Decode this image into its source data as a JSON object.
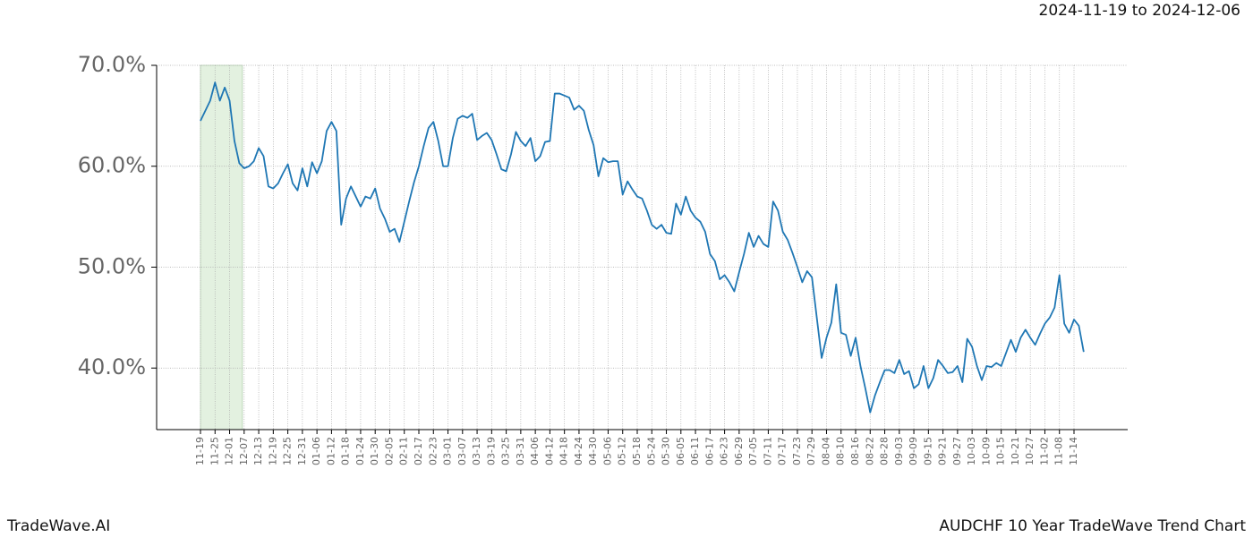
{
  "chart_data": {
    "type": "line",
    "title": "AUDCHF 10 Year TradeWave Trend Chart",
    "subtitle": "2024-11-19 to 2024-12-06",
    "brand": "TradeWave.AI",
    "color": "#1f77b4",
    "highlight": {
      "from": "11-19",
      "to": "12-07",
      "color": "#e3f1e0"
    },
    "grid": true,
    "ylim": [
      33.9,
      70
    ],
    "yticks": [
      {
        "value": 40,
        "label": "40.0%"
      },
      {
        "value": 50,
        "label": "50.0%"
      },
      {
        "value": 60,
        "label": "60.0%"
      },
      {
        "value": 70,
        "label": "70.0%"
      }
    ],
    "categories": [
      "11-19",
      null,
      null,
      "11-25",
      null,
      null,
      "12-01",
      null,
      null,
      "12-07",
      null,
      null,
      "12-13",
      null,
      null,
      "12-19",
      null,
      null,
      "12-25",
      null,
      null,
      "12-31",
      null,
      null,
      "01-06",
      null,
      null,
      "01-12",
      null,
      null,
      "01-18",
      null,
      null,
      "01-24",
      null,
      null,
      "01-30",
      null,
      null,
      "02-05",
      null,
      null,
      "02-11",
      null,
      null,
      "02-17",
      null,
      null,
      "02-23",
      null,
      null,
      "03-01",
      null,
      null,
      "03-07",
      null,
      null,
      "03-13",
      null,
      null,
      "03-19",
      null,
      null,
      "03-25",
      null,
      null,
      "03-31",
      null,
      null,
      "04-06",
      null,
      null,
      "04-12",
      null,
      null,
      "04-18",
      null,
      null,
      "04-24",
      null,
      null,
      "04-30",
      null,
      null,
      "05-06",
      null,
      null,
      "05-12",
      null,
      null,
      "05-18",
      null,
      null,
      "05-24",
      null,
      null,
      "05-30",
      null,
      null,
      "06-05",
      null,
      null,
      "06-11",
      null,
      null,
      "06-17",
      null,
      null,
      "06-23",
      null,
      null,
      "06-29",
      null,
      null,
      "07-05",
      null,
      null,
      "07-11",
      null,
      null,
      "07-17",
      null,
      null,
      "07-23",
      null,
      null,
      "07-29",
      null,
      null,
      "08-04",
      null,
      null,
      "08-10",
      null,
      null,
      "08-16",
      null,
      null,
      "08-22",
      null,
      null,
      "08-28",
      null,
      null,
      "09-03",
      null,
      null,
      "09-09",
      null,
      null,
      "09-15",
      null,
      null,
      "09-21",
      null,
      null,
      "09-27",
      null,
      null,
      "10-03",
      null,
      null,
      "10-09",
      null,
      null,
      "10-15",
      null,
      null,
      "10-21",
      null,
      null,
      "10-27",
      null,
      null,
      "11-02",
      null,
      null,
      "11-08",
      null,
      null,
      "11-14",
      null,
      null
    ],
    "values": [
      64.5,
      65.5,
      66.5,
      68.3,
      66.5,
      67.8,
      66.5,
      62.5,
      60.3,
      59.8,
      60,
      60.5,
      61.8,
      61,
      58,
      57.8,
      58.3,
      59.3,
      60.2,
      58.3,
      57.6,
      59.8,
      58,
      60.4,
      59.3,
      60.5,
      63.5,
      64.4,
      63.5,
      54.2,
      56.8,
      58,
      57,
      56,
      57,
      56.8,
      57.8,
      55.8,
      54.8,
      53.5,
      53.8,
      52.5,
      54.5,
      56.5,
      58.4,
      60,
      62,
      63.8,
      64.4,
      62.5,
      60,
      60,
      62.8,
      64.7,
      65,
      64.8,
      65.2,
      62.6,
      63,
      63.3,
      62.6,
      61.2,
      59.7,
      59.5,
      61.2,
      63.4,
      62.5,
      62,
      62.8,
      60.5,
      61,
      62.4,
      62.5,
      67.2,
      67.2,
      67,
      66.8,
      65.6,
      66,
      65.5,
      63.6,
      62.1,
      59,
      60.8,
      60.4,
      60.5,
      60.5,
      57.2,
      58.5,
      57.7,
      57,
      56.8,
      55.6,
      54.2,
      53.8,
      54.2,
      53.4,
      53.3,
      56.3,
      55.2,
      57,
      55.6,
      54.9,
      54.5,
      53.5,
      51.3,
      50.6,
      48.8,
      49.2,
      48.5,
      47.6,
      49.5,
      51.3,
      53.4,
      52,
      53.1,
      52.3,
      52,
      56.5,
      55.6,
      53.5,
      52.7,
      51.4,
      50,
      48.5,
      49.6,
      49,
      45,
      41,
      43,
      44.5,
      48.3,
      43.5,
      43.3,
      41.2,
      43,
      40.2,
      38,
      35.6,
      37.3,
      38.6,
      39.8,
      39.8,
      39.5,
      40.8,
      39.4,
      39.7,
      38,
      38.4,
      40.2,
      38,
      39,
      40.8,
      40.2,
      39.5,
      39.6,
      40.2,
      38.6,
      42.9,
      42.1,
      40.2,
      38.8,
      40.2,
      40.1,
      40.5,
      40.2,
      41.5,
      42.8,
      41.6,
      43,
      43.8,
      43,
      42.3,
      43.4,
      44.4,
      45,
      46,
      49.2,
      44.4,
      43.5,
      44.8,
      44.2,
      41.6
    ]
  }
}
